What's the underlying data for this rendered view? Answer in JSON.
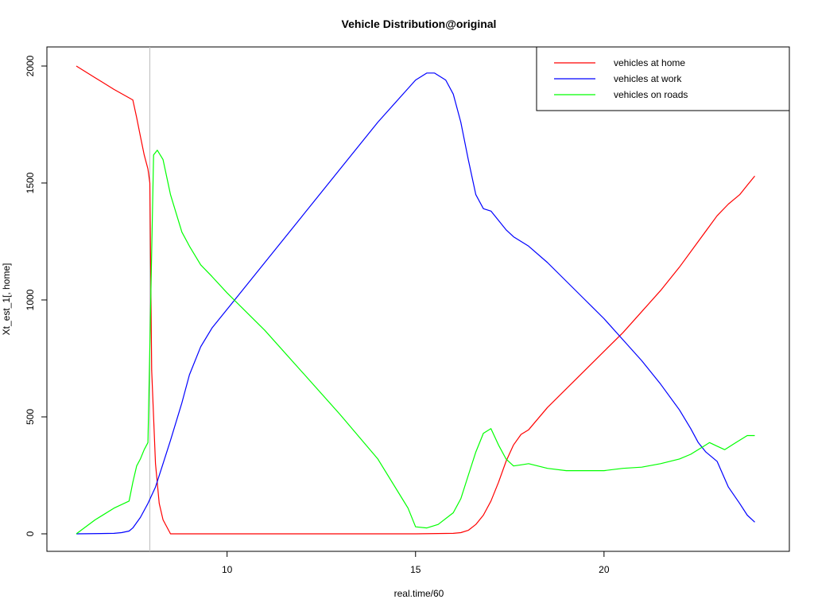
{
  "chart_data": {
    "type": "line",
    "title": "Vehicle Distribution@original",
    "xlabel": "real.time/60",
    "ylabel": "Xt_est_1[, home]",
    "xlim": [
      6,
      24.2
    ],
    "ylim": [
      0,
      2000
    ],
    "xticks": [
      10,
      15,
      20
    ],
    "yticks": [
      0,
      500,
      1000,
      1500,
      2000
    ],
    "vline_x": 7.95,
    "legend_position": "top-right",
    "series": [
      {
        "name": "vehicles at home",
        "color": "#ff0000",
        "x": [
          6.0,
          6.5,
          7.0,
          7.5,
          7.6,
          7.7,
          7.8,
          7.9,
          7.95,
          8.0,
          8.1,
          8.2,
          8.3,
          8.5,
          9,
          10,
          12,
          14,
          15,
          16,
          16.2,
          16.4,
          16.6,
          16.8,
          17.0,
          17.2,
          17.4,
          17.6,
          17.8,
          18.0,
          18.5,
          19.0,
          19.5,
          20.0,
          20.5,
          21.0,
          21.5,
          22.0,
          22.5,
          23.0,
          23.3,
          23.6,
          23.8,
          24.0
        ],
        "y": [
          2000,
          1950,
          1900,
          1855,
          1780,
          1700,
          1620,
          1560,
          1500,
          700,
          300,
          130,
          60,
          0,
          0,
          0,
          0,
          0,
          0,
          2,
          5,
          15,
          40,
          80,
          140,
          220,
          310,
          380,
          425,
          445,
          540,
          620,
          700,
          780,
          860,
          950,
          1040,
          1140,
          1250,
          1360,
          1410,
          1450,
          1490,
          1530
        ]
      },
      {
        "name": "vehicles at work",
        "color": "#0000ff",
        "x": [
          6.0,
          7.0,
          7.2,
          7.4,
          7.5,
          7.7,
          7.9,
          8.1,
          8.3,
          8.5,
          8.8,
          9.0,
          9.3,
          9.6,
          10.0,
          11.0,
          12.0,
          13.0,
          14.0,
          15.0,
          15.3,
          15.5,
          15.8,
          16.0,
          16.2,
          16.4,
          16.6,
          16.8,
          17.0,
          17.2,
          17.4,
          17.6,
          17.8,
          18.0,
          18.5,
          19.0,
          19.5,
          20.0,
          20.5,
          21.0,
          21.5,
          22.0,
          22.3,
          22.5,
          22.7,
          23.0,
          23.3,
          23.6,
          23.8,
          24.0
        ],
        "y": [
          0,
          2,
          5,
          12,
          25,
          70,
          130,
          200,
          300,
          400,
          560,
          680,
          800,
          880,
          960,
          1160,
          1360,
          1560,
          1760,
          1940,
          1970,
          1970,
          1940,
          1880,
          1760,
          1600,
          1450,
          1390,
          1380,
          1340,
          1300,
          1270,
          1250,
          1230,
          1160,
          1080,
          1000,
          920,
          830,
          740,
          640,
          530,
          450,
          390,
          350,
          310,
          200,
          130,
          80,
          50
        ]
      },
      {
        "name": "vehicles on roads",
        "color": "#00ff00",
        "x": [
          6.0,
          6.5,
          7.0,
          7.4,
          7.5,
          7.6,
          7.7,
          7.8,
          7.9,
          7.95,
          8.05,
          8.15,
          8.3,
          8.5,
          8.8,
          9.0,
          9.3,
          9.6,
          10.0,
          11.0,
          12.0,
          13.0,
          14.0,
          14.8,
          15.0,
          15.3,
          15.6,
          16.0,
          16.2,
          16.4,
          16.6,
          16.8,
          17.0,
          17.2,
          17.4,
          17.6,
          17.8,
          18.0,
          18.5,
          19.0,
          19.5,
          20.0,
          20.5,
          21.0,
          21.5,
          22.0,
          22.3,
          22.6,
          22.8,
          23.0,
          23.2,
          23.5,
          23.8,
          24.0
        ],
        "y": [
          0,
          60,
          110,
          140,
          220,
          290,
          320,
          360,
          390,
          800,
          1620,
          1640,
          1600,
          1450,
          1290,
          1230,
          1150,
          1100,
          1030,
          870,
          690,
          510,
          320,
          110,
          30,
          25,
          40,
          90,
          150,
          250,
          350,
          430,
          450,
          380,
          320,
          290,
          295,
          300,
          280,
          270,
          270,
          270,
          280,
          285,
          300,
          320,
          340,
          370,
          390,
          375,
          360,
          390,
          420,
          420
        ]
      }
    ]
  }
}
